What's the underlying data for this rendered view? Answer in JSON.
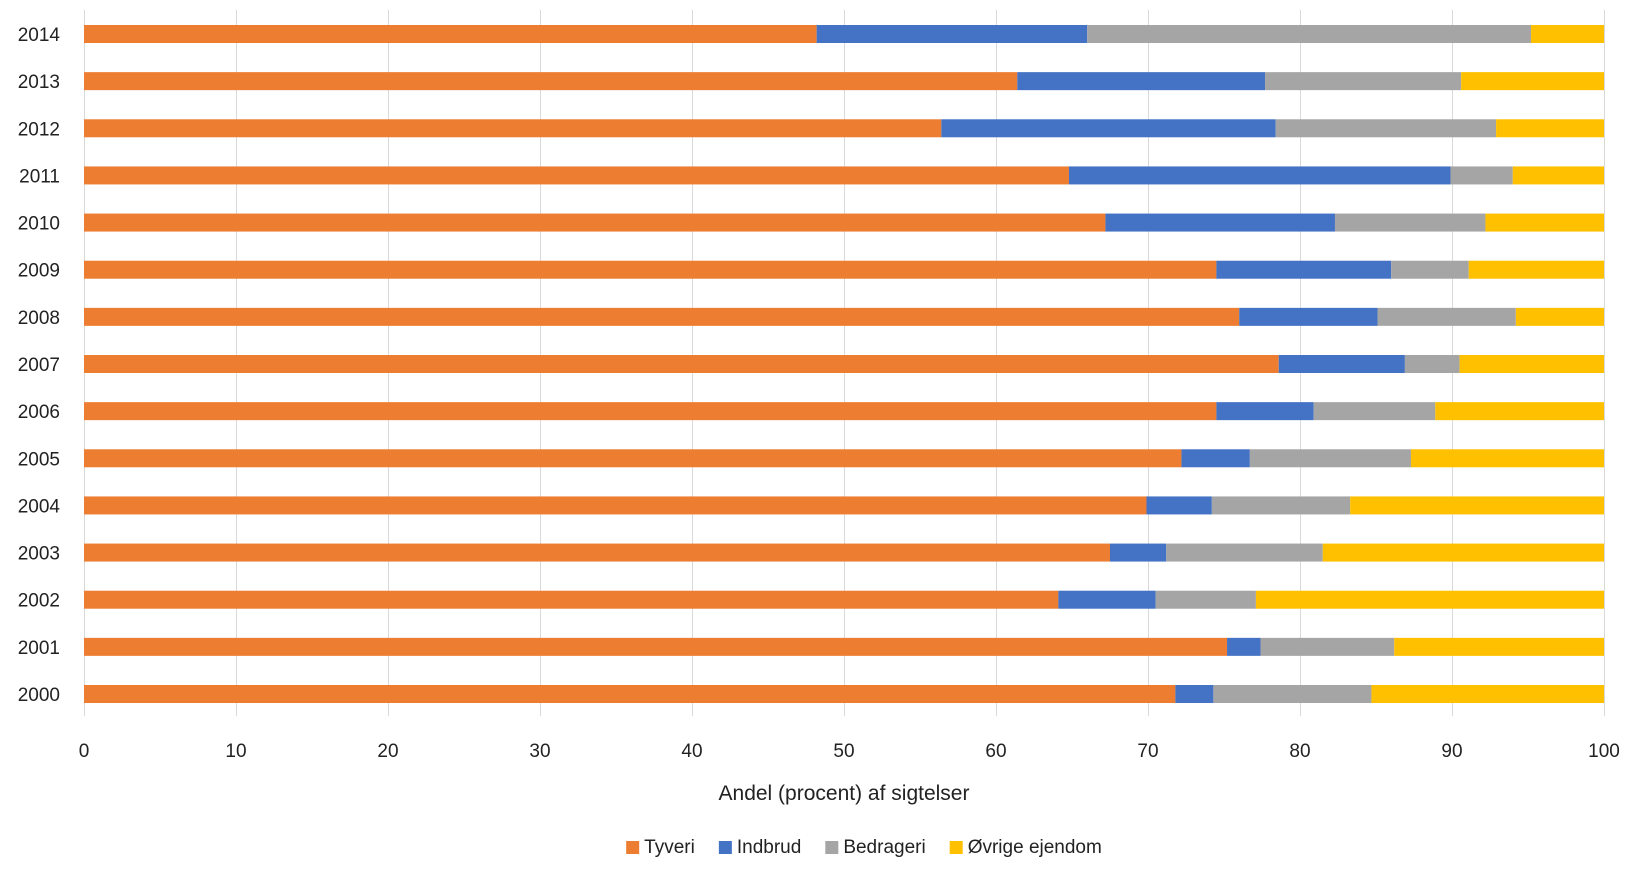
{
  "chart_data": {
    "type": "bar",
    "orientation": "horizontal",
    "stacked": true,
    "categories": [
      "2000",
      "2001",
      "2002",
      "2003",
      "2004",
      "2005",
      "2006",
      "2007",
      "2008",
      "2009",
      "2010",
      "2011",
      "2012",
      "2013",
      "2014"
    ],
    "series": [
      {
        "name": "Tyveri",
        "color": "#ED7D31",
        "values": [
          71.8,
          75.2,
          64.1,
          67.5,
          69.9,
          72.2,
          74.5,
          78.6,
          76.0,
          74.5,
          67.2,
          64.8,
          56.4,
          61.4,
          48.2
        ]
      },
      {
        "name": "Indbrud",
        "color": "#4472C4",
        "values": [
          2.5,
          2.2,
          6.4,
          3.7,
          4.3,
          4.5,
          6.4,
          8.3,
          9.1,
          11.5,
          15.1,
          25.1,
          22.0,
          16.3,
          17.8
        ]
      },
      {
        "name": "Bedrageri",
        "color": "#A5A5A5",
        "values": [
          10.4,
          8.8,
          6.6,
          10.3,
          9.1,
          10.6,
          8.0,
          3.6,
          9.1,
          5.1,
          9.9,
          4.1,
          14.5,
          12.9,
          29.2
        ]
      },
      {
        "name": "Øvrige ejendom",
        "color": "#FFC000",
        "values": [
          15.3,
          13.8,
          22.9,
          18.5,
          16.7,
          12.7,
          11.1,
          9.5,
          5.8,
          8.9,
          7.8,
          6.0,
          7.1,
          9.4,
          4.8
        ]
      }
    ],
    "xlim": [
      0,
      100
    ],
    "xticks": [
      "0",
      "10",
      "20",
      "30",
      "40",
      "50",
      "60",
      "70",
      "80",
      "90",
      "100"
    ],
    "xlabel": "Andel (procent) af sigtelser",
    "ylabel": "",
    "grid": "vertical",
    "legend_position": "bottom"
  }
}
